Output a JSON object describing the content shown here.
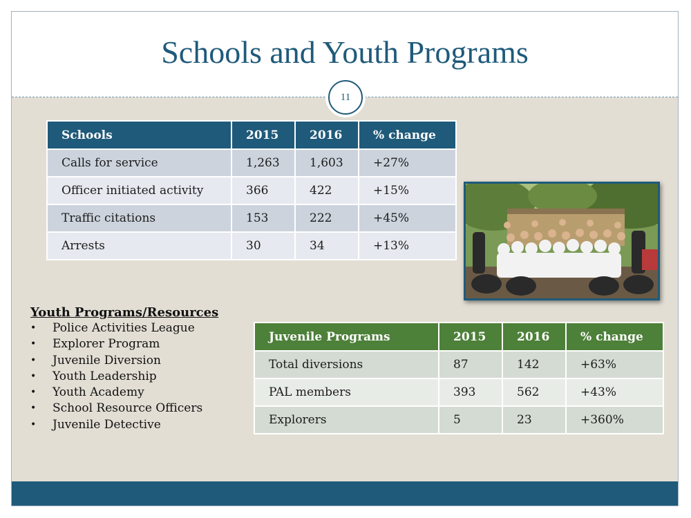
{
  "title": "Schools and Youth Programs",
  "page_number": "11",
  "schools_table": {
    "headers": [
      "Schools",
      "2015",
      "2016",
      "% change"
    ],
    "rows": [
      [
        "Calls for service",
        "1,263",
        "1,603",
        "+27%"
      ],
      [
        "Officer initiated activity",
        "366",
        "422",
        "+15%"
      ],
      [
        "Traffic citations",
        "153",
        "222",
        "+45%"
      ],
      [
        "Arrests",
        "30",
        "34",
        "+13%"
      ]
    ]
  },
  "youth_programs": {
    "heading": "Youth Programs/Resources",
    "bullet": "•",
    "items": [
      "Police Activities League",
      "Explorer Program",
      "Juvenile Diversion",
      "Youth Leadership",
      "Youth Academy",
      "School Resource Officers",
      "Juvenile Detective"
    ]
  },
  "juvenile_table": {
    "headers": [
      "Juvenile Programs",
      "2015",
      "2016",
      "% change"
    ],
    "rows": [
      [
        "Total diversions",
        "87",
        "142",
        "+63%"
      ],
      [
        "PAL members",
        "393",
        "562",
        "+43%"
      ],
      [
        "Explorers",
        "5",
        "23",
        "+360%"
      ]
    ]
  },
  "colors": {
    "title": "#1f5a7a",
    "schools_header": "#1f5a7a",
    "juvenile_header": "#4d8039",
    "content_background": "#e3ded4",
    "footer": "#1f5a7a"
  }
}
